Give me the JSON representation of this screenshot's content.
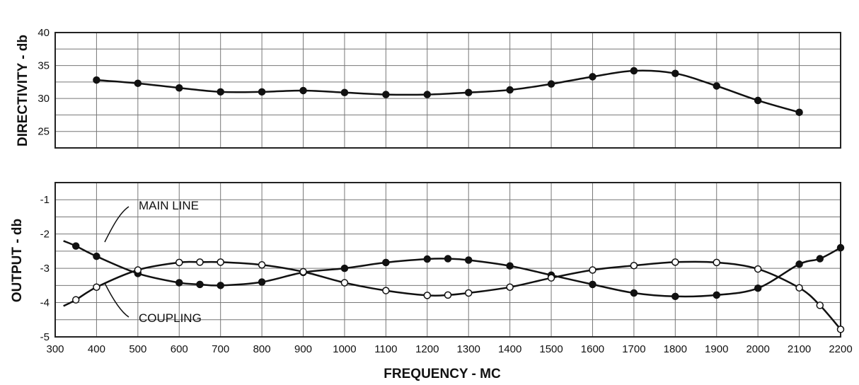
{
  "chart_data": [
    {
      "type": "line",
      "ylabel": "DIRECTIVITY - db",
      "ylim": [
        22.5,
        40
      ],
      "xlim": [
        300,
        2200
      ],
      "grid": true,
      "y_ticks": [
        "40",
        "35",
        "30",
        "25"
      ],
      "series": [
        {
          "marker": "filled-circle",
          "points": [
            [
              400,
              32.8
            ],
            [
              500,
              32.3
            ],
            [
              600,
              31.6
            ],
            [
              700,
              31.0
            ],
            [
              800,
              31.0
            ],
            [
              900,
              31.2
            ],
            [
              1000,
              30.9
            ],
            [
              1100,
              30.6
            ],
            [
              1200,
              30.6
            ],
            [
              1300,
              30.9
            ],
            [
              1400,
              31.3
            ],
            [
              1500,
              32.2
            ],
            [
              1600,
              33.3
            ],
            [
              1700,
              34.2
            ],
            [
              1800,
              33.8
            ],
            [
              1900,
              31.9
            ],
            [
              2000,
              29.7
            ],
            [
              2100,
              27.9
            ]
          ]
        }
      ]
    },
    {
      "type": "line",
      "ylabel": "OUTPUT - db",
      "xlabel": "FREQUENCY - MC",
      "ylim": [
        -5,
        -0.5
      ],
      "xlim": [
        300,
        2200
      ],
      "grid": true,
      "y_ticks": [
        "-1",
        "-2",
        "-3",
        "-4",
        "-5"
      ],
      "x_ticks": [
        "300",
        "400",
        "500",
        "600",
        "700",
        "800",
        "900",
        "1000",
        "1100",
        "1200",
        "1300",
        "1400",
        "1500",
        "1600",
        "1700",
        "1800",
        "1900",
        "2000",
        "2100",
        "2200"
      ],
      "series": [
        {
          "name": "MAIN LINE",
          "marker": "filled-circle",
          "points": [
            [
              350,
              -2.35
            ],
            [
              400,
              -2.65
            ],
            [
              500,
              -3.15
            ],
            [
              600,
              -3.42
            ],
            [
              650,
              -3.47
            ],
            [
              700,
              -3.5
            ],
            [
              800,
              -3.4
            ],
            [
              900,
              -3.12
            ],
            [
              1000,
              -3.0
            ],
            [
              1100,
              -2.83
            ],
            [
              1200,
              -2.73
            ],
            [
              1250,
              -2.72
            ],
            [
              1300,
              -2.76
            ],
            [
              1400,
              -2.93
            ],
            [
              1500,
              -3.2
            ],
            [
              1600,
              -3.47
            ],
            [
              1700,
              -3.72
            ],
            [
              1800,
              -3.82
            ],
            [
              1900,
              -3.78
            ],
            [
              2000,
              -3.58
            ],
            [
              2100,
              -2.88
            ],
            [
              2150,
              -2.72
            ],
            [
              2200,
              -2.4
            ]
          ]
        },
        {
          "name": "COUPLING",
          "marker": "open-circle",
          "points": [
            [
              350,
              -3.92
            ],
            [
              400,
              -3.55
            ],
            [
              500,
              -3.05
            ],
            [
              600,
              -2.83
            ],
            [
              650,
              -2.82
            ],
            [
              700,
              -2.82
            ],
            [
              800,
              -2.9
            ],
            [
              900,
              -3.1
            ],
            [
              1000,
              -3.42
            ],
            [
              1100,
              -3.65
            ],
            [
              1200,
              -3.79
            ],
            [
              1250,
              -3.78
            ],
            [
              1300,
              -3.72
            ],
            [
              1400,
              -3.55
            ],
            [
              1500,
              -3.28
            ],
            [
              1600,
              -3.05
            ],
            [
              1700,
              -2.92
            ],
            [
              1800,
              -2.82
            ],
            [
              1900,
              -2.83
            ],
            [
              2000,
              -3.02
            ],
            [
              2100,
              -3.57
            ],
            [
              2150,
              -4.08
            ],
            [
              2200,
              -4.78
            ]
          ]
        }
      ]
    }
  ]
}
